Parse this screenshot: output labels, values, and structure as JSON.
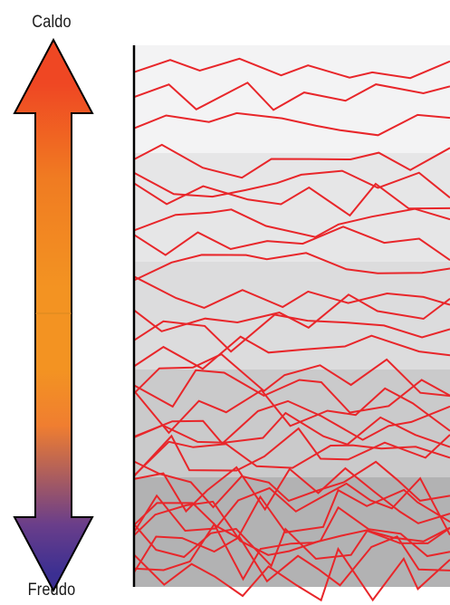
{
  "scale": {
    "hot_label": "Caldo",
    "cold_label": "Freddo",
    "gradient_colors": [
      "#ef4723",
      "#f07b22",
      "#f39322",
      "#f39322",
      "#f07e30",
      "#6a3e8a",
      "#3b2f92"
    ]
  },
  "diagram": {
    "line_color": "#e8262a",
    "band_colors": [
      "#f3f3f4",
      "#e6e6e7",
      "#dcdcdd",
      "#cacacb",
      "#b2b2b3"
    ],
    "axis_color": "#000000"
  }
}
